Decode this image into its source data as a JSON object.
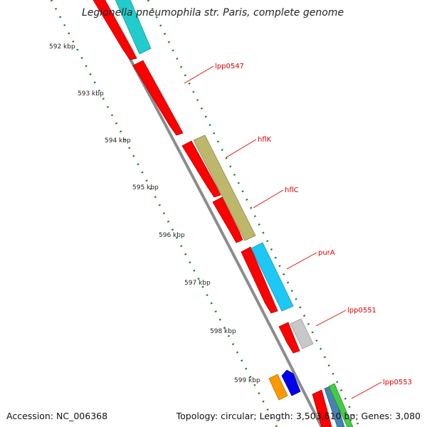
{
  "title": "Legionella pneumophila str. Paris, complete genome",
  "footer": {
    "accession": "Accession: NC_006368",
    "topology": "Topology: circular; Length: 3,503,610 bp; Genes: 3,080"
  },
  "ruler": [
    "592 kbp",
    "593 kbp",
    "594 kbp",
    "595 kbp",
    "596 kbp",
    "597 kbp",
    "598 kbp",
    "599 kbp"
  ],
  "gene_labels": [
    "lpp0547",
    "hflK",
    "hflC",
    "purA",
    "lpp0551",
    "lpp0553"
  ],
  "colors": {
    "red": "#ff0000",
    "cyan": "#22cccc",
    "olive": "#bdb76b",
    "lightblue": "#1ec8f5",
    "gray": "#c8c8c8",
    "orange": "#ff9900",
    "blue": "#0000ee",
    "backbone": "#8c8c8c",
    "tick": "#1a7a1a"
  }
}
